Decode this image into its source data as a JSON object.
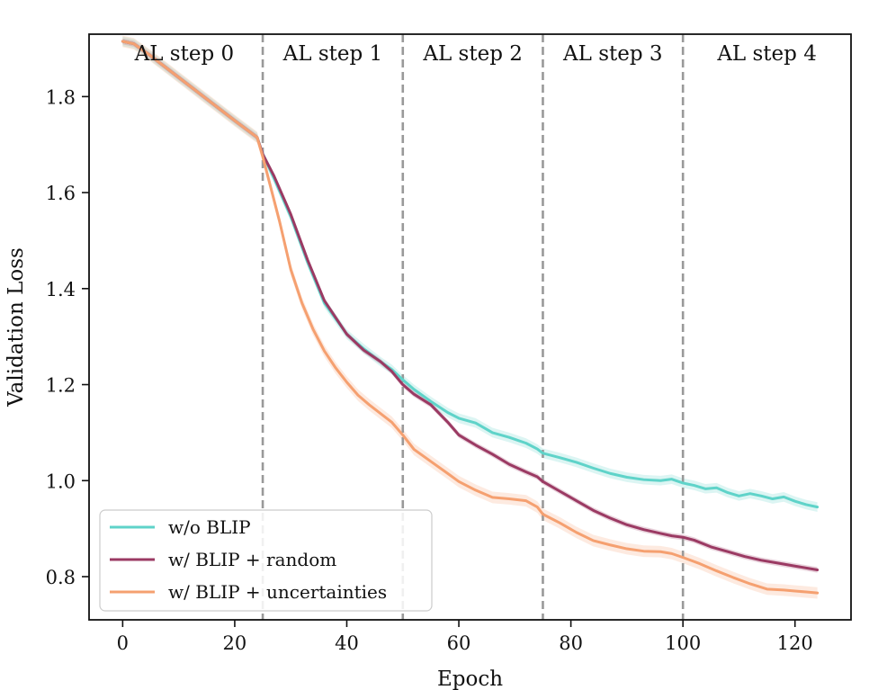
{
  "chart_data": {
    "type": "line",
    "title": "",
    "xlabel": "Epoch",
    "ylabel": "Validation Loss",
    "xlim": [
      -6,
      130
    ],
    "ylim": [
      0.71,
      1.93
    ],
    "xticks": [
      0,
      20,
      40,
      60,
      80,
      100,
      120
    ],
    "yticks": [
      0.8,
      1.0,
      1.2,
      1.4,
      1.6,
      1.8
    ],
    "xtick_labels": [
      "0",
      "20",
      "40",
      "60",
      "80",
      "100",
      "120"
    ],
    "ytick_labels": [
      "0.8",
      "1.0",
      "1.2",
      "1.4",
      "1.6",
      "1.8"
    ],
    "grid": false,
    "legend_position": "lower-left",
    "step_boundaries": [
      25,
      50,
      75,
      100
    ],
    "step_labels": [
      {
        "text": "AL step 0",
        "x_center": 11
      },
      {
        "text": "AL step 1",
        "x_center": 37.5
      },
      {
        "text": "AL step 2",
        "x_center": 62.5
      },
      {
        "text": "AL step 3",
        "x_center": 87.5
      },
      {
        "text": "AL step 4",
        "x_center": 115
      }
    ],
    "series": [
      {
        "name": "w/o BLIP",
        "color": "#5fd3c9",
        "band": 0.01,
        "x": [
          0,
          2,
          5,
          10,
          15,
          20,
          24,
          25,
          27,
          30,
          33,
          36,
          40,
          43,
          46,
          48,
          50,
          52,
          55,
          58,
          60,
          63,
          66,
          69,
          72,
          74,
          75,
          78,
          81,
          84,
          87,
          90,
          93,
          96,
          98,
          100,
          102,
          104,
          106,
          108,
          110,
          112,
          114,
          116,
          118,
          120,
          122,
          124
        ],
        "y": [
          1.915,
          1.91,
          1.885,
          1.84,
          1.795,
          1.75,
          1.715,
          1.68,
          1.63,
          1.55,
          1.455,
          1.37,
          1.305,
          1.275,
          1.248,
          1.232,
          1.21,
          1.19,
          1.165,
          1.142,
          1.13,
          1.12,
          1.1,
          1.09,
          1.078,
          1.066,
          1.057,
          1.048,
          1.038,
          1.026,
          1.015,
          1.007,
          1.002,
          1.0,
          1.003,
          0.995,
          0.99,
          0.983,
          0.985,
          0.975,
          0.968,
          0.973,
          0.968,
          0.962,
          0.966,
          0.957,
          0.95,
          0.945
        ]
      },
      {
        "name": "w/ BLIP + random",
        "color": "#9b3a63",
        "band": 0.006,
        "x": [
          0,
          2,
          5,
          10,
          15,
          20,
          24,
          25,
          27,
          30,
          33,
          36,
          40,
          43,
          46,
          48,
          50,
          52,
          55,
          58,
          60,
          63,
          66,
          69,
          72,
          74,
          75,
          78,
          81,
          84,
          87,
          90,
          93,
          96,
          98,
          100,
          102,
          105,
          108,
          111,
          114,
          117,
          120,
          124
        ],
        "y": [
          1.915,
          1.91,
          1.885,
          1.84,
          1.795,
          1.75,
          1.715,
          1.68,
          1.635,
          1.555,
          1.46,
          1.375,
          1.305,
          1.272,
          1.248,
          1.228,
          1.2,
          1.18,
          1.158,
          1.122,
          1.095,
          1.074,
          1.055,
          1.034,
          1.018,
          1.008,
          0.998,
          0.978,
          0.958,
          0.938,
          0.922,
          0.908,
          0.898,
          0.89,
          0.885,
          0.882,
          0.876,
          0.862,
          0.852,
          0.842,
          0.834,
          0.828,
          0.822,
          0.814
        ]
      },
      {
        "name": "w/ BLIP + uncertainties",
        "color": "#f5a070",
        "band": 0.012,
        "x": [
          0,
          2,
          5,
          10,
          15,
          20,
          24,
          25,
          26,
          28,
          30,
          32,
          34,
          36,
          38,
          40,
          42,
          44,
          46,
          48,
          50,
          52,
          55,
          58,
          60,
          63,
          66,
          69,
          72,
          74,
          75,
          78,
          81,
          84,
          87,
          90,
          93,
          96,
          98,
          100,
          103,
          106,
          109,
          112,
          115,
          118,
          120,
          122,
          124
        ],
        "y": [
          1.915,
          1.91,
          1.885,
          1.84,
          1.795,
          1.75,
          1.715,
          1.675,
          1.63,
          1.54,
          1.44,
          1.37,
          1.315,
          1.27,
          1.235,
          1.205,
          1.178,
          1.158,
          1.14,
          1.122,
          1.095,
          1.065,
          1.04,
          1.015,
          0.998,
          0.98,
          0.965,
          0.962,
          0.958,
          0.945,
          0.93,
          0.912,
          0.892,
          0.875,
          0.866,
          0.858,
          0.853,
          0.852,
          0.848,
          0.84,
          0.827,
          0.812,
          0.798,
          0.785,
          0.774,
          0.772,
          0.77,
          0.768,
          0.766
        ]
      }
    ]
  }
}
